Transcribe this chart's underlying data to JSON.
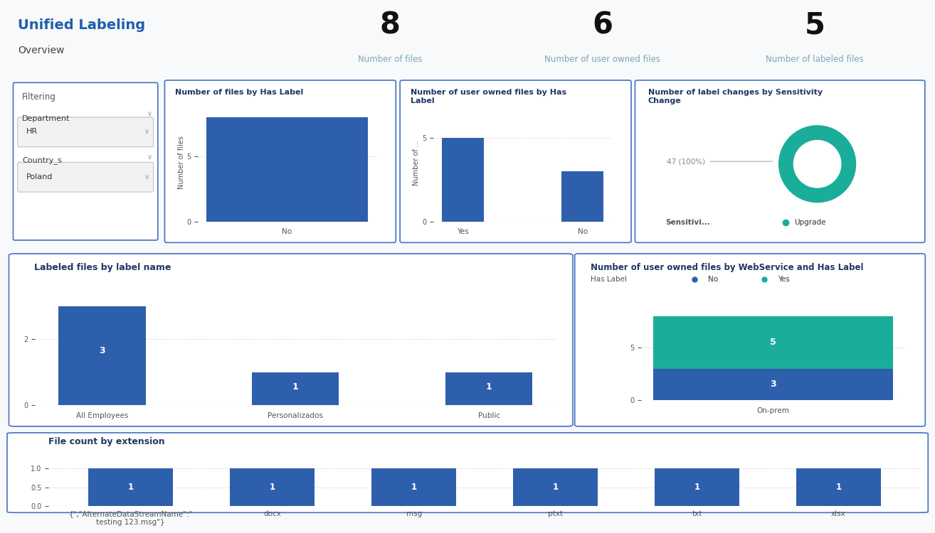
{
  "title": "Unified Labeling",
  "subtitle": "Overview",
  "kpi": [
    {
      "value": "8",
      "label": "Number of files"
    },
    {
      "value": "6",
      "label": "Number of user owned files"
    },
    {
      "value": "5",
      "label": "Number of labeled files"
    }
  ],
  "filter_box": {
    "title": "Filtering",
    "fields": [
      {
        "label": "Department",
        "value": "HR"
      },
      {
        "label": "Country_s",
        "value": "Poland"
      }
    ]
  },
  "chart1": {
    "title": "Number of files by Has Label",
    "ylabel": "Number of files",
    "categories": [
      "No"
    ],
    "values": [
      8
    ],
    "yticks": [
      0,
      5
    ],
    "ylim": [
      0,
      9
    ],
    "bar_color": "#2E5FAC"
  },
  "chart2": {
    "title": "Number of user owned files by Has\nLabel",
    "ylabel": "Number of ...",
    "categories": [
      "Yes",
      "No"
    ],
    "values": [
      5,
      3
    ],
    "yticks": [
      0,
      5
    ],
    "ylim": [
      0,
      7
    ],
    "bar_color": "#2E5FAC"
  },
  "chart3": {
    "title": "Number of label changes by Sensitivity\nChange",
    "donut_value": "47 (100%)",
    "donut_color": "#1AAD9A",
    "legend_label": "Upgrade",
    "legend_color": "#1AAD9A",
    "legend_x_label": "Sensitivi..."
  },
  "chart4": {
    "title": "Labeled files by label name",
    "categories": [
      "All Employees",
      "Personalizados",
      "Public"
    ],
    "values": [
      3,
      1,
      1
    ],
    "bar_color": "#2E5FAC",
    "yticks": [
      0,
      2
    ],
    "ylim": [
      0,
      3.8
    ],
    "annotations": [
      "3",
      "1",
      "1"
    ]
  },
  "chart5": {
    "title": "Number of user owned files by WebService and Has Label",
    "legend_labels": [
      "No",
      "Yes"
    ],
    "legend_colors": [
      "#2E5FAC",
      "#1AAD9A"
    ],
    "categories": [
      "On-prem"
    ],
    "values_no": [
      3
    ],
    "values_yes": [
      5
    ],
    "yticks": [
      0,
      5
    ],
    "ylim": [
      0,
      10
    ],
    "annotations": [
      "3",
      "5"
    ]
  },
  "chart6": {
    "title": "File count by extension",
    "categories": [
      "{\",\"AlternateDataStreamName\":\"\ntesting 123.msg\"}",
      "docx",
      "msg",
      "ptxt",
      "txt",
      "xlsx"
    ],
    "cat_display": [
      "{\",\"AlternateDataStreamName\":\"\ntesting 123.msg\"}",
      "docx",
      "msg",
      "ptxt",
      "txt",
      "xlsx"
    ],
    "values": [
      1,
      1,
      1,
      1,
      1,
      1
    ],
    "bar_color": "#2E5FAC",
    "yticks": [
      0.0,
      0.5,
      1.0
    ],
    "ylim": [
      0,
      1.35
    ],
    "annotations": [
      "1",
      "1",
      "1",
      "1",
      "1",
      "1"
    ],
    "tick_colors": [
      "#555555",
      "#555555",
      "#4472C4",
      "#4472C4",
      "#4472C4",
      "#4472C4"
    ]
  },
  "colors": {
    "title_blue": "#1F5FAD",
    "subtitle_gray": "#555555",
    "kpi_value": "#1a1a1a",
    "kpi_label": "#7BA7BC",
    "panel_border": "#4472C4",
    "bg": "#F8F9FA",
    "grid_line": "#CCCCCC",
    "filter_border": "#4472C4",
    "axis_label_color": "#555555",
    "tick_color": "#555555",
    "chart_title_color": "#1F3864"
  }
}
